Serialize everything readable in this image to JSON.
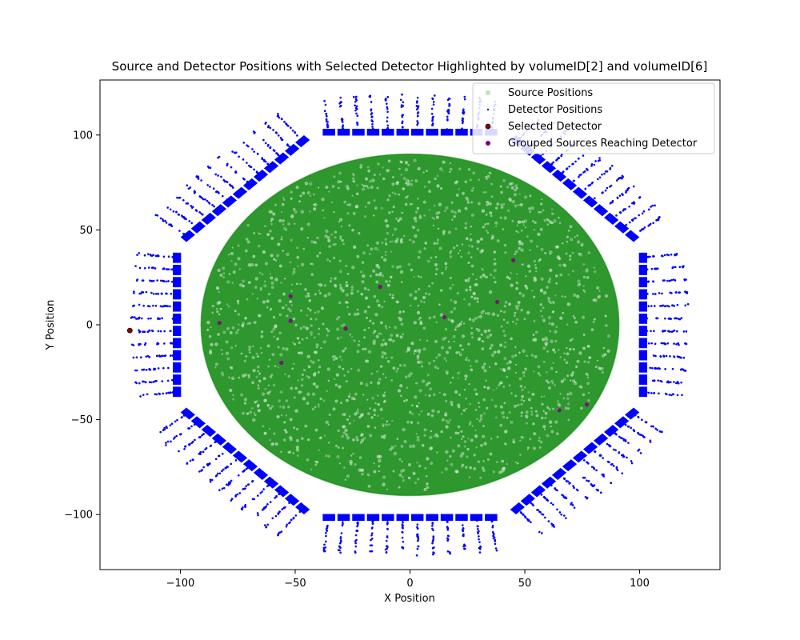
{
  "chart_data": {
    "type": "scatter",
    "title": "Source and Detector Positions with Selected Detector Highlighted by volumeID[2] and volumeID[6]",
    "xlabel": "X Position",
    "ylabel": "Y Position",
    "xlim": [
      -135,
      135
    ],
    "ylim": [
      -129,
      129
    ],
    "x_ticks": [
      -100,
      -50,
      0,
      50,
      100
    ],
    "y_ticks": [
      -100,
      -50,
      0,
      50,
      100
    ],
    "grid": false,
    "legend_position": "top-right",
    "colors": {
      "source": "#008000",
      "detector": "#0000ff",
      "selected_detector": "#8b0000",
      "grouped": "#800080"
    },
    "series": [
      {
        "name": "Source Positions",
        "kind": "filled_ellipse_cloud",
        "center": [
          0,
          0
        ],
        "radius_x": 91,
        "radius_y": 90
      },
      {
        "name": "Detector Positions",
        "kind": "octagonal_detector_ring",
        "inner_radius": 100,
        "outer_radius": 122,
        "sectors": 8,
        "modules_per_sector": 12
      },
      {
        "name": "Selected Detector",
        "points": [
          [
            -122,
            -3
          ]
        ]
      },
      {
        "name": "Grouped Sources Reaching Detector",
        "points": [
          [
            -83,
            1
          ],
          [
            -52,
            15
          ],
          [
            -52,
            2
          ],
          [
            -28,
            -2
          ],
          [
            -56,
            -20
          ],
          [
            -13,
            20
          ],
          [
            15,
            4
          ],
          [
            38,
            12
          ],
          [
            45,
            34
          ],
          [
            65,
            -45
          ],
          [
            77,
            -42
          ]
        ]
      }
    ]
  }
}
